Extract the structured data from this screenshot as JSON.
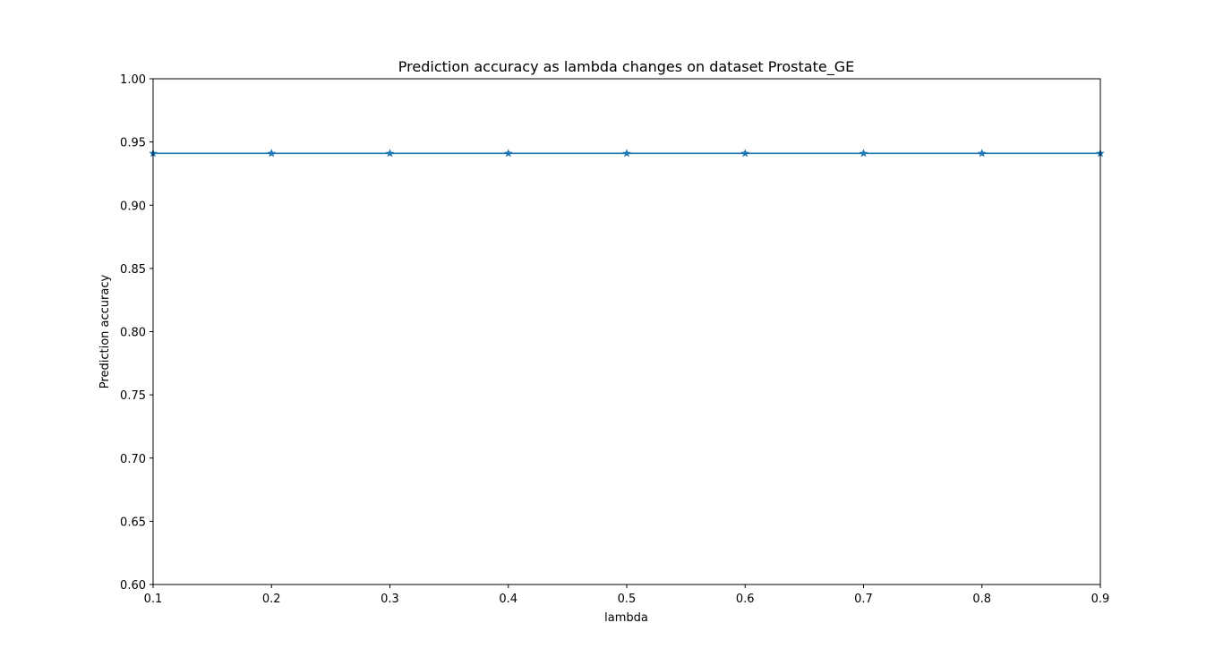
{
  "chart_data": {
    "type": "line",
    "title": "Prediction accuracy as lambda changes on dataset Prostate_GE",
    "xlabel": "lambda",
    "ylabel": "Prediction accuracy",
    "xlim": [
      0.1,
      0.9
    ],
    "ylim": [
      0.6,
      1.0
    ],
    "x_ticks": [
      "0.1",
      "0.2",
      "0.3",
      "0.4",
      "0.5",
      "0.6",
      "0.7",
      "0.8",
      "0.9"
    ],
    "y_ticks": [
      "0.60",
      "0.65",
      "0.70",
      "0.75",
      "0.80",
      "0.85",
      "0.90",
      "0.95",
      "1.00"
    ],
    "grid": false,
    "marker": "star",
    "color": "#1f77b4",
    "x": [
      0.1,
      0.2,
      0.3,
      0.4,
      0.5,
      0.6,
      0.7,
      0.8,
      0.9
    ],
    "series": [
      {
        "values": [
          0.941,
          0.941,
          0.941,
          0.941,
          0.941,
          0.941,
          0.941,
          0.941,
          0.941
        ]
      }
    ]
  }
}
